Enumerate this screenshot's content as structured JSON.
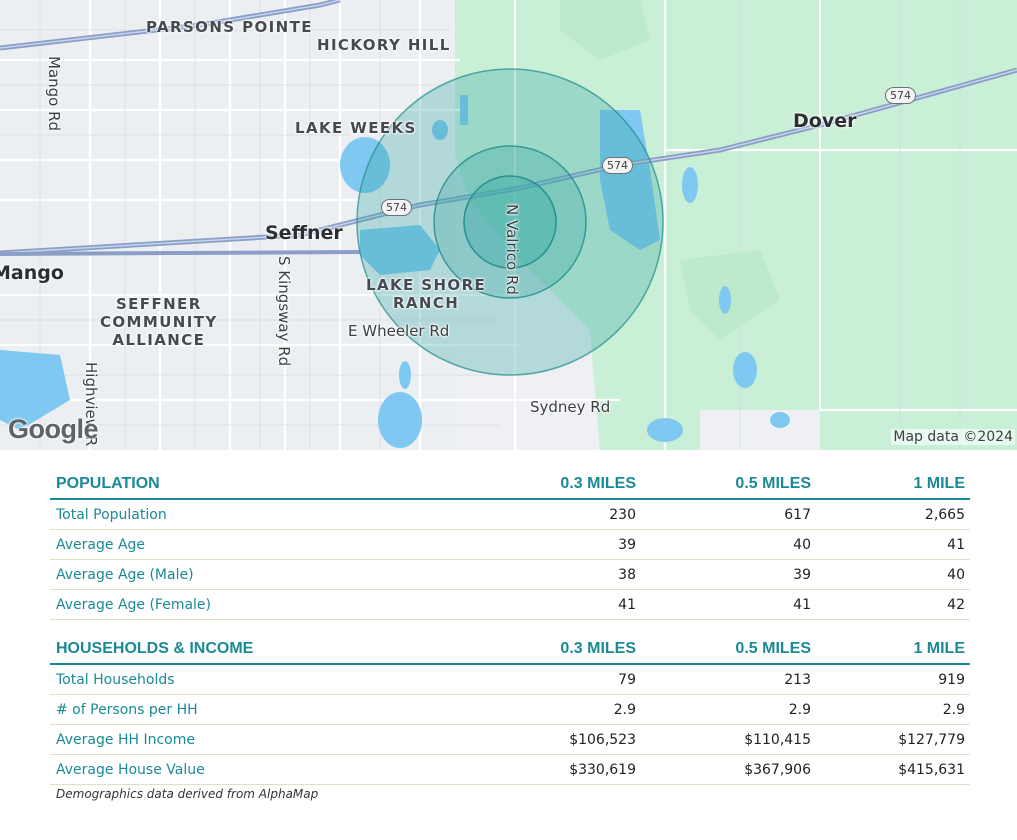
{
  "map": {
    "labels": {
      "parsons_pointe": "PARSONS POINTE",
      "hickory_hill": "HICKORY HILL",
      "lake_weeks": "LAKE WEEKS",
      "dover": "Dover",
      "seffner": "Seffner",
      "mango": "Mango",
      "seffner_community_alliance": "SEFFNER\nCOMMUNITY\nALLIANCE",
      "lake_shore_ranch": "LAKE SHORE\nRANCH",
      "mango_rd": "Mango Rd",
      "s_kingsway_rd": "S Kingsway Rd",
      "n_valrico_rd": "N Valrico Rd",
      "e_wheeler_rd": "E Wheeler Rd",
      "sydney_rd": "Sydney Rd",
      "highview_rd": "Highview R"
    },
    "shields": [
      "574",
      "574",
      "574"
    ],
    "logo": "Google",
    "attribution": "Map data ©2024",
    "colors": {
      "radius_fill": "#3aa9a6",
      "radius_stroke": "#1f8b8a",
      "park": "#c9efd7",
      "water": "#7ec8f2",
      "highway": "#8a9ec6"
    }
  },
  "population": {
    "header": [
      "POPULATION",
      "0.3 MILES",
      "0.5 MILES",
      "1 MILE"
    ],
    "rows": [
      [
        "Total Population",
        "230",
        "617",
        "2,665"
      ],
      [
        "Average Age",
        "39",
        "40",
        "41"
      ],
      [
        "Average Age (Male)",
        "38",
        "39",
        "40"
      ],
      [
        "Average Age (Female)",
        "41",
        "41",
        "42"
      ]
    ]
  },
  "households": {
    "header": [
      "HOUSEHOLDS & INCOME",
      "0.3 MILES",
      "0.5 MILES",
      "1 MILE"
    ],
    "rows": [
      [
        "Total Households",
        "79",
        "213",
        "919"
      ],
      [
        "# of Persons per HH",
        "2.9",
        "2.9",
        "2.9"
      ],
      [
        "Average HH Income",
        "$106,523",
        "$110,415",
        "$127,779"
      ],
      [
        "Average House Value",
        "$330,619",
        "$367,906",
        "$415,631"
      ]
    ]
  },
  "footnote": "Demographics data derived from AlphaMap"
}
